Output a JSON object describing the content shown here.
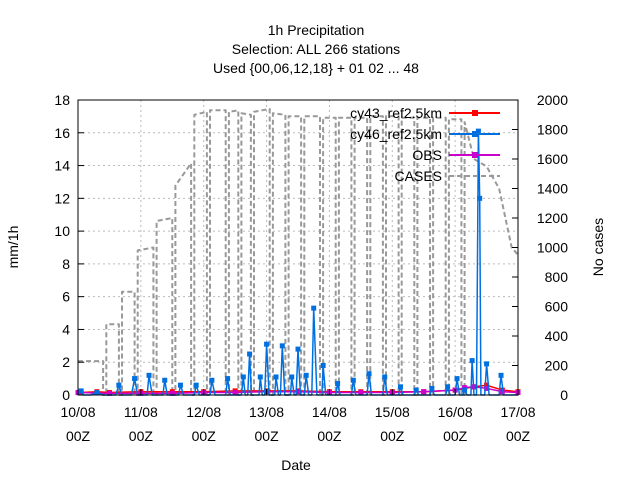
{
  "chart_data": {
    "type": "line",
    "title_lines": [
      "1h Precipitation",
      "Selection: ALL    266 stations",
      "Used {00,06,12,18} + 01 02 ... 48"
    ],
    "xlabel": "Date",
    "ylabel": "mm/1h",
    "y2label": "No cases",
    "ylim": [
      0,
      18
    ],
    "y2lim": [
      0,
      2000
    ],
    "yticks": [
      0,
      2,
      4,
      6,
      8,
      10,
      12,
      14,
      16,
      18
    ],
    "y2ticks": [
      0,
      200,
      400,
      600,
      800,
      1000,
      1200,
      1400,
      1600,
      1800,
      2000
    ],
    "x_ticks": [
      {
        "line1": "10/08",
        "line2": "00Z"
      },
      {
        "line1": "11/08",
        "line2": "00Z"
      },
      {
        "line1": "12/08",
        "line2": "00Z"
      },
      {
        "line1": "13/08",
        "line2": "00Z"
      },
      {
        "line1": "14/08",
        "line2": "00Z"
      },
      {
        "line1": "15/08",
        "line2": "00Z"
      },
      {
        "line1": "16/08",
        "line2": "00Z"
      },
      {
        "line1": "17/08",
        "line2": "00Z"
      }
    ],
    "x_unit": "days since 10/08 00Z",
    "grid": true,
    "legend_position": "top-right",
    "series": [
      {
        "name": "cy43_ref2.5km",
        "color": "#ff0000",
        "axis": "y",
        "marker": "square",
        "points": [
          [
            0.05,
            0.15
          ],
          [
            0.3,
            0.2
          ],
          [
            0.5,
            0.15
          ],
          [
            1.0,
            0.2
          ],
          [
            1.5,
            0.2
          ],
          [
            2.0,
            0.2
          ],
          [
            2.5,
            0.25
          ],
          [
            3.0,
            0.25
          ],
          [
            3.5,
            0.25
          ],
          [
            4.0,
            0.2
          ],
          [
            4.5,
            0.2
          ],
          [
            5.0,
            0.2
          ],
          [
            5.5,
            0.2
          ],
          [
            6.0,
            0.3
          ],
          [
            6.3,
            0.5
          ],
          [
            6.5,
            0.6
          ],
          [
            6.75,
            0.3
          ],
          [
            7.0,
            0.2
          ]
        ]
      },
      {
        "name": "cy46_ref2.5km",
        "color": "#0070e0",
        "axis": "y",
        "marker": "square",
        "points": [
          [
            0.0,
            0.0
          ],
          [
            0.05,
            0.25
          ],
          [
            0.08,
            0.0
          ],
          [
            0.2,
            0.0
          ],
          [
            0.3,
            0.15
          ],
          [
            0.4,
            0.0
          ],
          [
            0.6,
            0.0
          ],
          [
            0.65,
            0.6
          ],
          [
            0.7,
            0.0
          ],
          [
            0.85,
            0.0
          ],
          [
            0.9,
            1.0
          ],
          [
            0.95,
            0.0
          ],
          [
            1.1,
            0.0
          ],
          [
            1.13,
            1.2
          ],
          [
            1.18,
            0.0
          ],
          [
            1.35,
            0.0
          ],
          [
            1.38,
            0.9
          ],
          [
            1.42,
            0.0
          ],
          [
            1.6,
            0.0
          ],
          [
            1.63,
            0.6
          ],
          [
            1.68,
            0.0
          ],
          [
            1.85,
            0.0
          ],
          [
            1.88,
            0.6
          ],
          [
            1.93,
            0.0
          ],
          [
            2.1,
            0.0
          ],
          [
            2.13,
            0.9
          ],
          [
            2.18,
            0.0
          ],
          [
            2.35,
            0.0
          ],
          [
            2.38,
            1.0
          ],
          [
            2.42,
            0.0
          ],
          [
            2.6,
            0.0
          ],
          [
            2.63,
            1.1
          ],
          [
            2.66,
            0.0
          ],
          [
            2.7,
            0.0
          ],
          [
            2.73,
            2.5
          ],
          [
            2.76,
            0.0
          ],
          [
            2.88,
            0.0
          ],
          [
            2.9,
            1.1
          ],
          [
            2.93,
            0.0
          ],
          [
            2.97,
            0.0
          ],
          [
            3.0,
            3.1
          ],
          [
            3.04,
            0.0
          ],
          [
            3.13,
            0.0
          ],
          [
            3.15,
            1.1
          ],
          [
            3.19,
            0.0
          ],
          [
            3.22,
            0.0
          ],
          [
            3.25,
            3.0
          ],
          [
            3.29,
            0.0
          ],
          [
            3.38,
            0.0
          ],
          [
            3.4,
            1.1
          ],
          [
            3.44,
            0.0
          ],
          [
            3.47,
            0.0
          ],
          [
            3.5,
            2.8
          ],
          [
            3.54,
            0.0
          ],
          [
            3.6,
            0.0
          ],
          [
            3.63,
            1.2
          ],
          [
            3.67,
            0.0
          ],
          [
            3.72,
            0.0
          ],
          [
            3.75,
            5.3
          ],
          [
            3.8,
            0.0
          ],
          [
            3.88,
            0.0
          ],
          [
            3.9,
            1.8
          ],
          [
            3.94,
            0.0
          ],
          [
            4.1,
            0.0
          ],
          [
            4.13,
            0.7
          ],
          [
            4.17,
            0.0
          ],
          [
            4.35,
            0.0
          ],
          [
            4.38,
            0.9
          ],
          [
            4.42,
            0.0
          ],
          [
            4.6,
            0.0
          ],
          [
            4.63,
            1.3
          ],
          [
            4.67,
            0.0
          ],
          [
            4.85,
            0.0
          ],
          [
            4.88,
            1.1
          ],
          [
            4.92,
            0.0
          ],
          [
            5.1,
            0.0
          ],
          [
            5.13,
            0.5
          ],
          [
            5.17,
            0.0
          ],
          [
            5.35,
            0.0
          ],
          [
            5.38,
            0.3
          ],
          [
            5.42,
            0.0
          ],
          [
            5.6,
            0.0
          ],
          [
            5.63,
            0.4
          ],
          [
            5.67,
            0.0
          ],
          [
            5.85,
            0.0
          ],
          [
            5.88,
            0.5
          ],
          [
            5.92,
            0.0
          ],
          [
            6.0,
            0.0
          ],
          [
            6.03,
            1.0
          ],
          [
            6.07,
            0.0
          ],
          [
            6.12,
            0.0
          ],
          [
            6.15,
            0.3
          ],
          [
            6.19,
            0.0
          ],
          [
            6.25,
            0.0
          ],
          [
            6.27,
            2.1
          ],
          [
            6.3,
            0.0
          ],
          [
            6.34,
            0.0
          ],
          [
            6.37,
            16.1
          ],
          [
            6.39,
            12.0
          ],
          [
            6.41,
            0.0
          ],
          [
            6.47,
            0.0
          ],
          [
            6.5,
            1.9
          ],
          [
            6.54,
            0.0
          ],
          [
            6.7,
            0.0
          ],
          [
            6.73,
            1.2
          ],
          [
            6.77,
            0.0
          ],
          [
            7.0,
            0.0
          ]
        ]
      },
      {
        "name": "OBS",
        "color": "#cc00cc",
        "axis": "y",
        "marker": "square",
        "points": [
          [
            0.0,
            0.15
          ],
          [
            0.5,
            0.1
          ],
          [
            1.0,
            0.1
          ],
          [
            1.5,
            0.1
          ],
          [
            2.0,
            0.15
          ],
          [
            2.5,
            0.15
          ],
          [
            3.0,
            0.2
          ],
          [
            3.5,
            0.2
          ],
          [
            4.0,
            0.15
          ],
          [
            4.5,
            0.15
          ],
          [
            5.0,
            0.15
          ],
          [
            5.5,
            0.2
          ],
          [
            6.0,
            0.3
          ],
          [
            6.15,
            0.45
          ],
          [
            6.3,
            0.5
          ],
          [
            6.5,
            0.4
          ],
          [
            6.75,
            0.2
          ],
          [
            7.0,
            0.15
          ]
        ]
      },
      {
        "name": "CASES",
        "color": "#999999",
        "axis": "y2",
        "dashed": true,
        "points": [
          [
            0.0,
            230
          ],
          [
            0.4,
            230
          ],
          [
            0.4,
            0
          ],
          [
            0.45,
            0
          ],
          [
            0.45,
            480
          ],
          [
            0.65,
            480
          ],
          [
            0.65,
            0
          ],
          [
            0.7,
            0
          ],
          [
            0.7,
            700
          ],
          [
            0.9,
            700
          ],
          [
            0.9,
            0
          ],
          [
            0.95,
            0
          ],
          [
            0.95,
            980
          ],
          [
            1.2,
            1000
          ],
          [
            1.2,
            0
          ],
          [
            1.25,
            0
          ],
          [
            1.25,
            1180
          ],
          [
            1.5,
            1200
          ],
          [
            1.5,
            0
          ],
          [
            1.55,
            0
          ],
          [
            1.55,
            1420
          ],
          [
            1.8,
            1570
          ],
          [
            1.8,
            0
          ],
          [
            1.85,
            0
          ],
          [
            1.85,
            1900
          ],
          [
            2.05,
            1920
          ],
          [
            2.05,
            0
          ],
          [
            2.1,
            0
          ],
          [
            2.1,
            1930
          ],
          [
            2.35,
            1930
          ],
          [
            2.35,
            0
          ],
          [
            2.4,
            0
          ],
          [
            2.4,
            1920
          ],
          [
            2.55,
            1930
          ],
          [
            2.55,
            0
          ],
          [
            2.6,
            0
          ],
          [
            2.6,
            1910
          ],
          [
            2.75,
            1900
          ],
          [
            2.75,
            0
          ],
          [
            2.8,
            0
          ],
          [
            2.8,
            1920
          ],
          [
            3.05,
            1940
          ],
          [
            3.05,
            0
          ],
          [
            3.1,
            0
          ],
          [
            3.1,
            1910
          ],
          [
            3.3,
            1900
          ],
          [
            3.3,
            0
          ],
          [
            3.35,
            0
          ],
          [
            3.35,
            1890
          ],
          [
            3.55,
            1890
          ],
          [
            3.55,
            0
          ],
          [
            3.6,
            0
          ],
          [
            3.6,
            1890
          ],
          [
            3.85,
            1890
          ],
          [
            3.85,
            0
          ],
          [
            3.9,
            0
          ],
          [
            3.9,
            1880
          ],
          [
            4.1,
            1880
          ],
          [
            4.1,
            0
          ],
          [
            4.15,
            0
          ],
          [
            4.15,
            1880
          ],
          [
            4.35,
            1880
          ],
          [
            4.35,
            0
          ],
          [
            4.4,
            0
          ],
          [
            4.4,
            1880
          ],
          [
            4.6,
            1880
          ],
          [
            4.6,
            0
          ],
          [
            4.65,
            0
          ],
          [
            4.65,
            1890
          ],
          [
            4.85,
            1890
          ],
          [
            4.85,
            0
          ],
          [
            4.9,
            0
          ],
          [
            4.9,
            1890
          ],
          [
            5.1,
            1890
          ],
          [
            5.1,
            0
          ],
          [
            5.15,
            0
          ],
          [
            5.15,
            1880
          ],
          [
            5.35,
            1880
          ],
          [
            5.35,
            0
          ],
          [
            5.4,
            0
          ],
          [
            5.4,
            1880
          ],
          [
            5.6,
            1880
          ],
          [
            5.6,
            0
          ],
          [
            5.65,
            0
          ],
          [
            5.65,
            1880
          ],
          [
            5.85,
            1880
          ],
          [
            5.85,
            0
          ],
          [
            5.9,
            0
          ],
          [
            5.9,
            1870
          ],
          [
            6.1,
            1870
          ],
          [
            6.1,
            0
          ],
          [
            6.15,
            0
          ],
          [
            6.15,
            1850
          ],
          [
            6.3,
            1600
          ],
          [
            6.5,
            1550
          ],
          [
            6.7,
            1400
          ],
          [
            6.8,
            1200
          ],
          [
            6.9,
            1000
          ],
          [
            7.0,
            950
          ]
        ]
      }
    ]
  }
}
